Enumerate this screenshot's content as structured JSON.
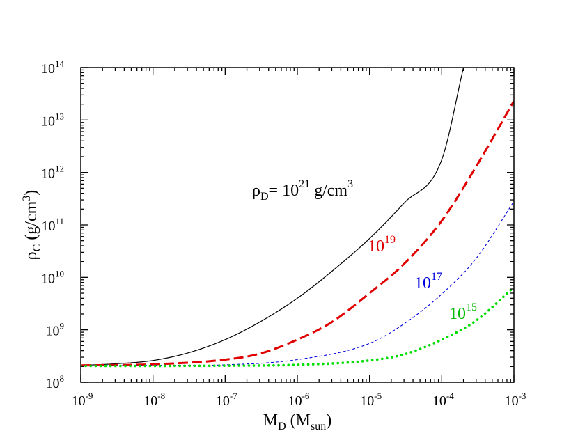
{
  "chart_data": {
    "type": "line",
    "title": "",
    "xscale": "log",
    "yscale": "log",
    "xlim": [
      1e-09,
      0.001
    ],
    "ylim": [
      100000000.0,
      100000000000000.0
    ],
    "xlabel": {
      "main": "M",
      "sub": "D",
      "open": " (M",
      "sub2": "sun",
      "close": ")"
    },
    "ylabel": {
      "main": "ρ",
      "sub": "C",
      "rest": " (g/cm",
      "sup": "3",
      "close": ")"
    },
    "x_ticks": [
      {
        "base": "10",
        "exp": "-9"
      },
      {
        "base": "10",
        "exp": "-8"
      },
      {
        "base": "10",
        "exp": "-7"
      },
      {
        "base": "10",
        "exp": "-6"
      },
      {
        "base": "10",
        "exp": "-5"
      },
      {
        "base": "10",
        "exp": "-4"
      },
      {
        "base": "10",
        "exp": "-3"
      }
    ],
    "y_ticks": [
      {
        "base": "10",
        "exp": "8"
      },
      {
        "base": "10",
        "exp": "9"
      },
      {
        "base": "10",
        "exp": "10"
      },
      {
        "base": "10",
        "exp": "11"
      },
      {
        "base": "10",
        "exp": "12"
      },
      {
        "base": "10",
        "exp": "13"
      },
      {
        "base": "10",
        "exp": "14"
      }
    ],
    "series": [
      {
        "name": "rho_D = 1e21 g/cm^3",
        "color": "#000000",
        "style": "solid",
        "width": 1.2,
        "x": [
          1e-09,
          3e-09,
          1e-08,
          3e-08,
          1e-07,
          3e-07,
          1e-06,
          3e-06,
          1e-05,
          3e-05,
          0.0001,
          0.0002
        ],
        "y": [
          210000000.0,
          225000000.0,
          260000000.0,
          360000000.0,
          650000000.0,
          1400000000.0,
          4000000000.0,
          13000000000.0,
          55000000000.0,
          260000000000.0,
          1750000000000.0,
          100000000000000.0
        ]
      },
      {
        "name": "rho_D = 1e19 g/cm^3",
        "color": "#e00000",
        "style": "longdash",
        "width": 3,
        "x": [
          1e-09,
          1e-08,
          1e-07,
          3e-07,
          1e-06,
          3e-06,
          1e-05,
          3e-05,
          0.0001,
          0.0003,
          0.001
        ],
        "y": [
          210000000.0,
          220000000.0,
          270000000.0,
          350000000.0,
          650000000.0,
          1400000000.0,
          5000000000.0,
          18000000000.0,
          120000000000.0,
          1300000000000.0,
          23000000000000.0
        ]
      },
      {
        "name": "rho_D = 1e17 g/cm^3",
        "color": "#0000e0",
        "style": "dash",
        "width": 1.1,
        "x": [
          1e-09,
          1e-08,
          1e-07,
          1e-06,
          1e-05,
          3e-05,
          0.0001,
          0.0003,
          0.001
        ],
        "y": [
          205000000.0,
          210000000.0,
          215000000.0,
          270000000.0,
          550000000.0,
          1300000000.0,
          4800000000.0,
          23000000000.0,
          280000000000.0
        ]
      },
      {
        "name": "rho_D = 1e15 g/cm^3",
        "color": "#00dd00",
        "style": "dotted",
        "width": 3.6,
        "x": [
          1e-09,
          1e-07,
          1e-06,
          1e-05,
          3e-05,
          0.0001,
          0.0003,
          0.001
        ],
        "y": [
          205000000.0,
          207000000.0,
          215000000.0,
          260000000.0,
          340000000.0,
          650000000.0,
          1500000000.0,
          6500000000.0
        ]
      }
    ],
    "annotations": [
      {
        "prefix": "ρ",
        "sub": "D",
        "mid": "= 10",
        "sup": "21",
        "rest": " g/cm",
        "sup2": "3",
        "color": "#000000"
      },
      {
        "prefix": "",
        "sub": "",
        "mid": "10",
        "sup": "19",
        "rest": "",
        "sup2": "",
        "color": "#e00000"
      },
      {
        "prefix": "",
        "sub": "",
        "mid": "10",
        "sup": "17",
        "rest": "",
        "sup2": "",
        "color": "#0000e0"
      },
      {
        "prefix": "",
        "sub": "",
        "mid": "10",
        "sup": "15",
        "rest": "",
        "sup2": "",
        "color": "#00bb00"
      }
    ]
  }
}
